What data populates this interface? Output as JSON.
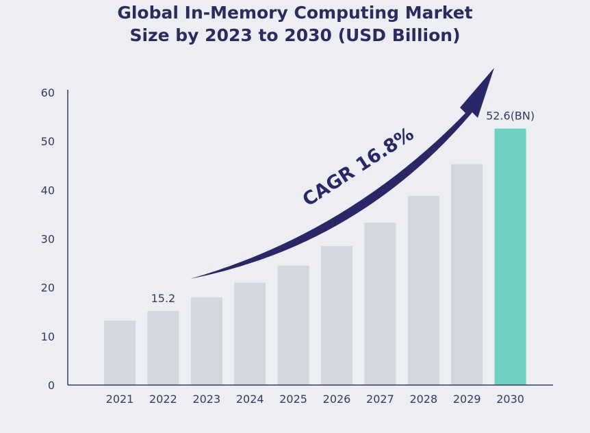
{
  "chart_data": {
    "type": "bar",
    "title_line1": "Global In-Memory Computing Market",
    "title_line2": "Size by 2023 to 2030 (USD Billion)",
    "categories": [
      "2021",
      "2022",
      "2023",
      "2024",
      "2025",
      "2026",
      "2027",
      "2028",
      "2029",
      "2030"
    ],
    "values": [
      13.2,
      15.2,
      18.0,
      21.0,
      24.5,
      28.5,
      33.3,
      38.8,
      45.3,
      52.6
    ],
    "data_labels": [
      {
        "category": "2022",
        "text": "15.2"
      },
      {
        "category": "2030",
        "text": "52.6(BN)"
      }
    ],
    "annotation": "CAGR 16.8%",
    "ylim": [
      0,
      60
    ],
    "yticks": [
      "0",
      "10",
      "20",
      "30",
      "40",
      "50",
      "60"
    ],
    "grid": false,
    "legend": "none",
    "colors": {
      "bar": "#d4d8de",
      "highlight_bar": "#6fcfc3",
      "axis": "#3a3860",
      "arrow": "#2a2766",
      "text": "#2d2b5e"
    },
    "highlight_category": "2030"
  }
}
